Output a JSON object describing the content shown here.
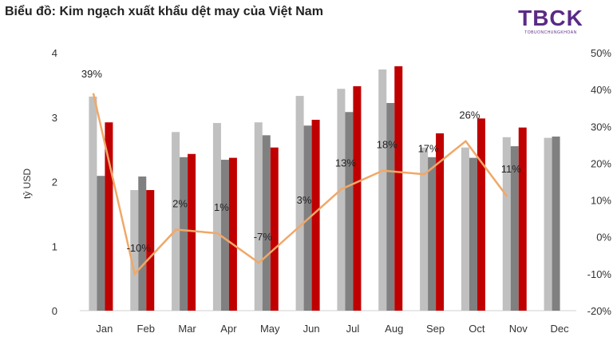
{
  "title": "Biểu đồ: Kim ngạch xuất khẩu dệt may của Việt Nam",
  "logo": {
    "text": "TBCK",
    "subtext": "TOBUONCHUNGKHOAN",
    "color": "#5b2a86"
  },
  "chart_data": {
    "type": "bar",
    "ylabel": "tỷ USD",
    "ylim": [
      0,
      4
    ],
    "yticks": [
      0,
      1,
      2,
      3,
      4
    ],
    "y2lim": [
      -20,
      50
    ],
    "y2ticks": [
      "-20%",
      "-10%",
      "0%",
      "10%",
      "20%",
      "30%",
      "40%",
      "50%"
    ],
    "categories": [
      "Jan",
      "Feb",
      "Mar",
      "Apr",
      "May",
      "Jun",
      "Jul",
      "Aug",
      "Sep",
      "Oct",
      "Nov",
      "Dec"
    ],
    "series": [
      {
        "color": "#c0c0c0",
        "values": [
          3.32,
          1.87,
          2.77,
          2.91,
          2.92,
          3.33,
          3.44,
          3.74,
          2.53,
          2.53,
          2.69,
          2.68
        ]
      },
      {
        "color": "#808080",
        "values": [
          2.09,
          2.08,
          2.38,
          2.34,
          2.72,
          2.87,
          3.08,
          3.22,
          2.38,
          2.37,
          2.55,
          2.7
        ]
      },
      {
        "color": "#c00000",
        "values": [
          2.92,
          1.87,
          2.43,
          2.37,
          2.53,
          2.96,
          3.48,
          3.79,
          2.75,
          2.98,
          2.84,
          null
        ]
      }
    ],
    "line": {
      "color": "#f0a868",
      "axis": "right",
      "values": [
        39,
        -10,
        2,
        1,
        -7,
        3,
        13,
        18,
        17,
        26,
        11,
        null
      ],
      "labels": [
        "39%",
        "-10%",
        "2%",
        "1%",
        "-7%",
        "3%",
        "13%",
        "18%",
        "17%",
        "26%",
        "11%",
        ""
      ]
    },
    "grid": false,
    "legend": "none"
  }
}
